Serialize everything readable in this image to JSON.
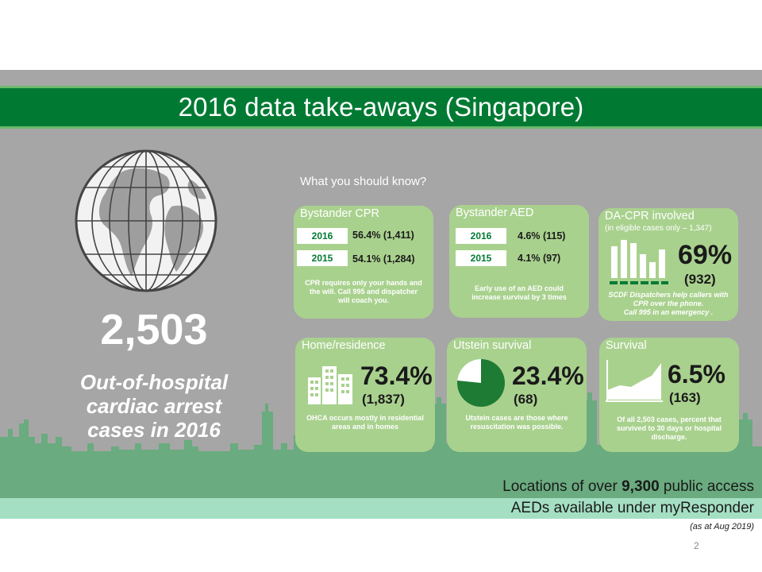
{
  "title": "2016 data take-aways (Singapore)",
  "total": {
    "count": "2,503",
    "caption_line1": "Out-of-hospital",
    "caption_line2": "cardiac arrest",
    "caption_line3": "cases in 2016"
  },
  "intro": "What you should know?",
  "cards": {
    "bystander_cpr": {
      "title": "Bystander CPR",
      "rows": [
        {
          "year": "2016",
          "value": "56.4% (1,411)"
        },
        {
          "year": "2015",
          "value": "54.1% (1,284)"
        }
      ],
      "note_line1": "CPR requires only your hands and",
      "note_line2": "the will.  Call 995 and dispatcher",
      "note_line3": "will coach you."
    },
    "bystander_aed": {
      "title": "Bystander AED",
      "rows": [
        {
          "year": "2016",
          "value": "4.6% (115)"
        },
        {
          "year": "2015",
          "value": "4.1% (97)"
        }
      ],
      "note_line1": "Early use of an AED could",
      "note_line2": "increase survival by 3 times"
    },
    "dacpr": {
      "title": "DA-CPR involved",
      "subtitle": "(in eligible cases only – 1,347)",
      "percent": "69%",
      "count": "(932)",
      "note_line1": "SCDF Dispatchers help callers with",
      "note_line2": "CPR over the phone.",
      "note_line3": "Call 995 in an emergency ."
    },
    "home": {
      "title": "Home/residence",
      "percent": "73.4%",
      "count": "(1,837)",
      "note_line1": "OHCA occurs mostly in residential",
      "note_line2": "areas and in homes"
    },
    "utstein": {
      "title": "Utstein survival",
      "percent": "23.4%",
      "count": "(68)",
      "pie_fraction": 0.234,
      "note_line1": "Utstein cases are those where",
      "note_line2": "resuscitation was possible."
    },
    "survival": {
      "title": "Survival",
      "percent": "6.5%",
      "count": "(163)",
      "note_line1": "Of all 2,503 cases, percent that",
      "note_line2": "survived to 30 days or hospital",
      "note_line3": "discharge."
    }
  },
  "footer": {
    "line1_a": "Locations of over ",
    "line1_b": "9,300",
    "line1_c": " public access",
    "line2": "AEDs available under myResponder",
    "date": "(as at Aug 2019)"
  },
  "page_number": "2",
  "colors": {
    "brand_green": "#007a33",
    "card_green": "#a9d18e",
    "panel_grey": "#a6a6a6",
    "skyline_green": "#6aab7f",
    "strip_mint": "#a4dfc4"
  },
  "icons": [
    "globe-icon",
    "bar-chart-icon",
    "buildings-icon",
    "pie-chart-icon",
    "line-chart-icon"
  ]
}
